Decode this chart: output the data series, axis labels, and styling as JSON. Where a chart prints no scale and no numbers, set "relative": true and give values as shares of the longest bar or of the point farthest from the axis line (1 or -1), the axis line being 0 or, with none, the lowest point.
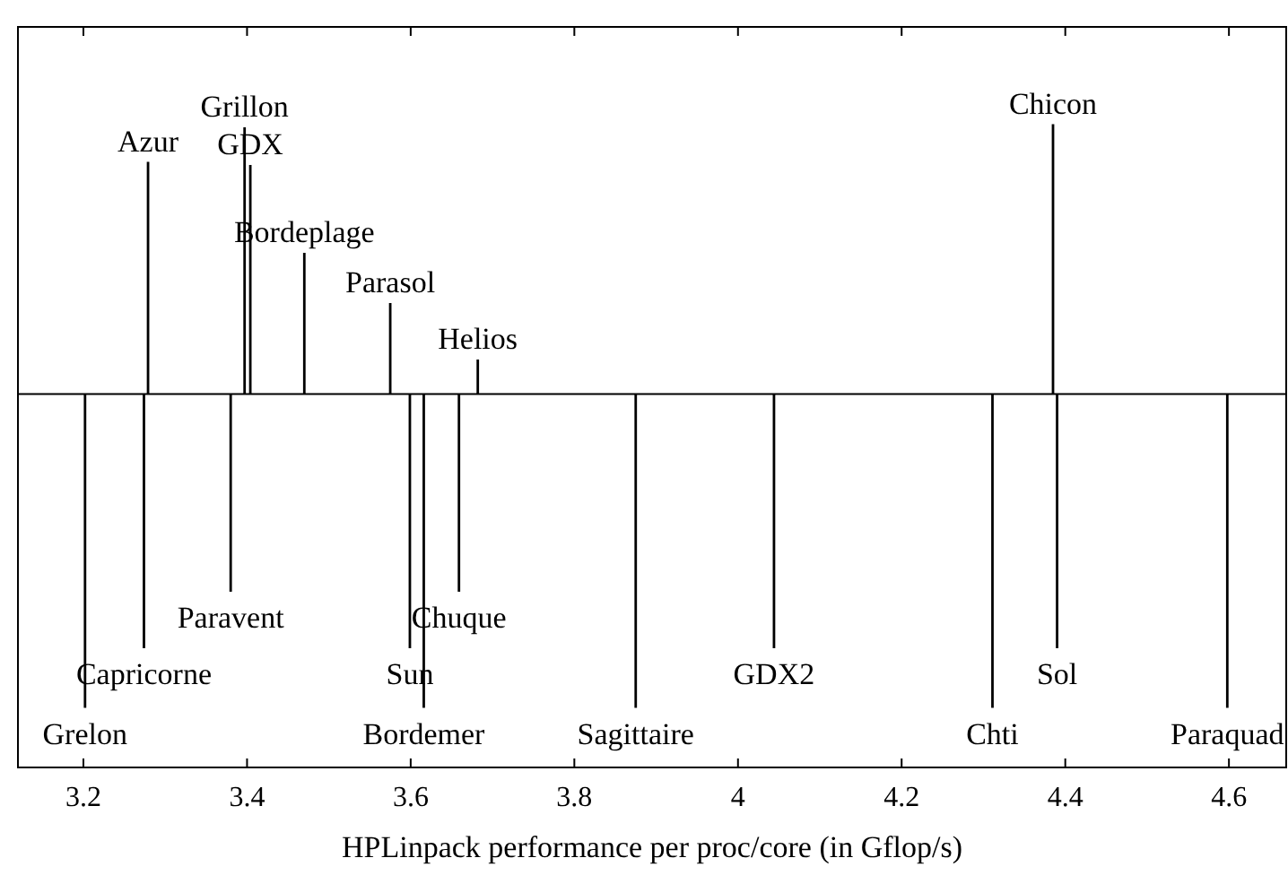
{
  "chart_data": {
    "type": "bar",
    "relative": true,
    "xlabel": "HPLinpack performance per proc/core (in Gflop/s)",
    "xlim": [
      3.12,
      4.67
    ],
    "xticks": [
      3.2,
      3.4,
      3.6,
      3.8,
      4,
      4.2,
      4.4,
      4.6
    ],
    "grid": false,
    "series": [
      {
        "color": "#000000",
        "x": [
          3.202,
          3.274,
          3.279,
          3.38,
          3.397,
          3.404,
          3.47,
          3.575,
          3.599,
          3.616,
          3.659,
          3.682,
          3.875,
          4.044,
          4.311,
          4.385,
          4.39,
          4.598
        ],
        "values": [
          -1,
          -0.81,
          0.74,
          -0.63,
          0.85,
          0.73,
          0.45,
          0.29,
          -0.81,
          -1,
          -0.63,
          0.11,
          -1,
          -0.81,
          -1,
          0.86,
          -0.81,
          -1
        ]
      }
    ],
    "annotations": [
      {
        "text": "Azur",
        "x": 3.279,
        "y": 0.74
      },
      {
        "text": "Grillon",
        "x": 3.397,
        "y": 0.85
      },
      {
        "text": "GDX",
        "x": 3.404,
        "y": 0.73
      },
      {
        "text": "Bordeplage",
        "x": 3.47,
        "y": 0.45
      },
      {
        "text": "Parasol",
        "x": 3.575,
        "y": 0.29
      },
      {
        "text": "Helios",
        "x": 3.682,
        "y": 0.11
      },
      {
        "text": "Chicon",
        "x": 4.385,
        "y": 0.86
      },
      {
        "text": "Grelon",
        "x": 3.202,
        "y": -1
      },
      {
        "text": "Capricorne",
        "x": 3.274,
        "y": -0.81
      },
      {
        "text": "Paravent",
        "x": 3.38,
        "y": -0.63
      },
      {
        "text": "Bordemer",
        "x": 3.616,
        "y": -1
      },
      {
        "text": "Sun",
        "x": 3.599,
        "y": -0.81
      },
      {
        "text": "Chuque",
        "x": 3.659,
        "y": -0.63
      },
      {
        "text": "Sagittaire",
        "x": 3.875,
        "y": -1
      },
      {
        "text": "GDX2",
        "x": 4.044,
        "y": -0.81
      },
      {
        "text": "Chti",
        "x": 4.311,
        "y": -1
      },
      {
        "text": "Sol",
        "x": 4.39,
        "y": -0.81
      },
      {
        "text": "Paraquad",
        "x": 4.598,
        "y": -1
      }
    ]
  }
}
